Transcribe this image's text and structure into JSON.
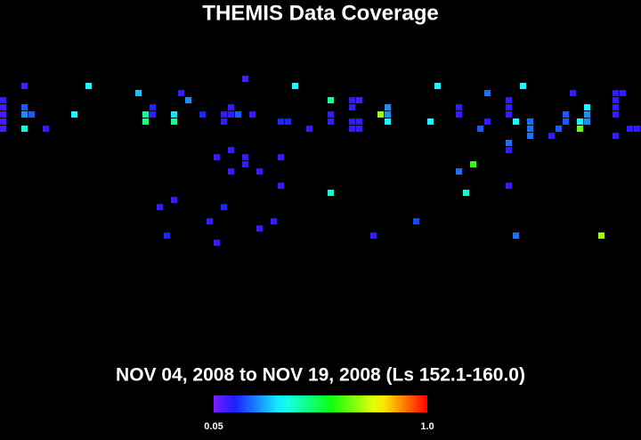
{
  "chart_data": {
    "type": "heatmap",
    "title": "THEMIS Data Coverage",
    "subtitle": "NOV 04, 2008 to NOV 19, 2008 (Ls 152.1-160.0)",
    "x": [
      3,
      12,
      19,
      25,
      26,
      34,
      41,
      46,
      49,
      50,
      61,
      68,
      71,
      73,
      80,
      86,
      87,
      86,
      0,
      0,
      0,
      0,
      0,
      3,
      3,
      4,
      3,
      6,
      10,
      20,
      20,
      21,
      21,
      24,
      24,
      28,
      31,
      31,
      32,
      32,
      33,
      35,
      39,
      40,
      43,
      46,
      46,
      49,
      49,
      50,
      49,
      50,
      53,
      54,
      54,
      54,
      60,
      64,
      64,
      68,
      67,
      71,
      71,
      72,
      74,
      74,
      74,
      77,
      78,
      79,
      79,
      81,
      81,
      82,
      82,
      82,
      86,
      86,
      86,
      88,
      89,
      71,
      71,
      30,
      32,
      34,
      34,
      32,
      39,
      36,
      66,
      64,
      39,
      46,
      65,
      71,
      24,
      22,
      31,
      29,
      38,
      58,
      36,
      23,
      52,
      72,
      84,
      30
    ],
    "y": [
      1,
      1,
      2,
      2,
      3,
      0,
      1,
      3,
      3,
      3,
      1,
      2,
      3,
      1,
      2,
      2,
      2,
      3,
      3,
      4,
      5,
      6,
      7,
      4,
      5,
      5,
      7,
      7,
      5,
      5,
      6,
      4,
      5,
      5,
      6,
      5,
      5,
      6,
      4,
      5,
      5,
      5,
      6,
      6,
      7,
      5,
      6,
      4,
      6,
      6,
      7,
      7,
      5,
      4,
      5,
      6,
      6,
      4,
      5,
      6,
      7,
      4,
      5,
      6,
      6,
      7,
      8,
      8,
      7,
      5,
      6,
      6,
      7,
      4,
      5,
      6,
      4,
      5,
      8,
      7,
      7,
      9,
      10,
      11,
      10,
      11,
      12,
      13,
      11,
      13,
      12,
      13,
      15,
      16,
      16,
      15,
      17,
      18,
      18,
      20,
      20,
      20,
      21,
      22,
      22,
      22,
      22,
      23
    ],
    "values": [
      0.1,
      0.35,
      0.3,
      0.12,
      0.25,
      0.1,
      0.35,
      0.45,
      0.12,
      0.1,
      0.35,
      0.22,
      0.12,
      0.35,
      0.12,
      0.12,
      0.12,
      0.12,
      0.12,
      0.1,
      0.1,
      0.1,
      0.1,
      0.2,
      0.25,
      0.2,
      0.4,
      0.12,
      0.35,
      0.45,
      0.45,
      0.12,
      0.12,
      0.33,
      0.45,
      0.15,
      0.12,
      0.12,
      0.12,
      0.12,
      0.2,
      0.12,
      0.15,
      0.15,
      0.12,
      0.12,
      0.12,
      0.12,
      0.12,
      0.12,
      0.12,
      0.12,
      0.7,
      0.25,
      0.25,
      0.35,
      0.35,
      0.12,
      0.12,
      0.12,
      0.2,
      0.12,
      0.12,
      0.35,
      0.22,
      0.22,
      0.22,
      0.12,
      0.2,
      0.2,
      0.2,
      0.35,
      0.65,
      0.35,
      0.25,
      0.25,
      0.12,
      0.12,
      0.12,
      0.12,
      0.12,
      0.22,
      0.12,
      0.12,
      0.12,
      0.12,
      0.12,
      0.12,
      0.12,
      0.12,
      0.6,
      0.22,
      0.12,
      0.4,
      0.4,
      0.12,
      0.12,
      0.12,
      0.15,
      0.12,
      0.12,
      0.18,
      0.12,
      0.15,
      0.12,
      0.22,
      0.7,
      0.12
    ],
    "clim": [
      0.05,
      1
    ],
    "cticks": [
      0.05,
      {
        "value": 1,
        "label": "1.0"
      }
    ]
  }
}
